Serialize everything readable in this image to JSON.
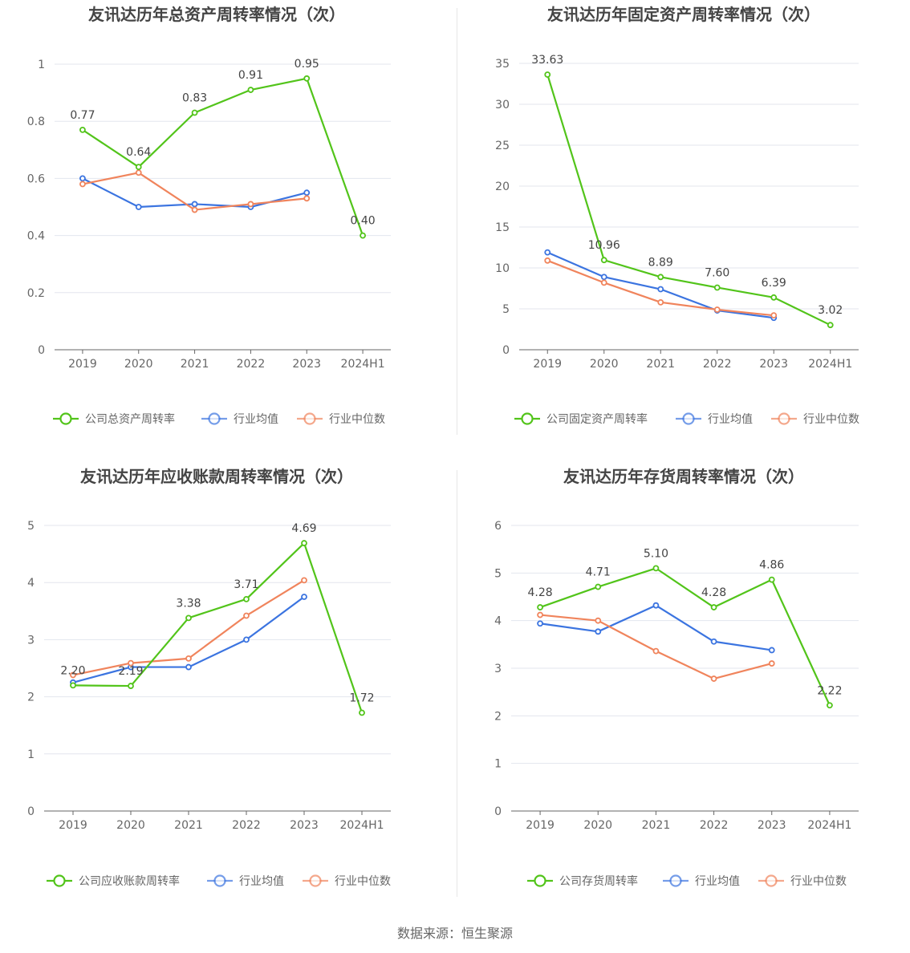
{
  "source_text": "数据来源：恒生聚源",
  "colors": {
    "company": "#52c41a",
    "avg": "#3b74e0",
    "median": "#f0845c"
  },
  "chart_data": [
    {
      "type": "line",
      "title": "友讯达历年总资产周转率情况（次）",
      "categories": [
        "2019",
        "2020",
        "2021",
        "2022",
        "2023",
        "2024H1"
      ],
      "ylim": [
        0,
        1
      ],
      "yticks": [
        0,
        0.2,
        0.4,
        0.6,
        0.8,
        1
      ],
      "ytick_labels": [
        "0",
        "0.2",
        "0.4",
        "0.6",
        "0.8",
        "1"
      ],
      "legend_position": "bottom",
      "series": [
        {
          "name": "公司总资产周转率",
          "values": [
            0.77,
            0.64,
            0.83,
            0.91,
            0.95,
            0.4
          ],
          "labels": [
            "0.77",
            "0.64",
            "0.83",
            "0.91",
            "0.95",
            "0.40"
          ]
        },
        {
          "name": "行业均值",
          "values": [
            0.6,
            0.5,
            0.51,
            0.5,
            0.55,
            null
          ]
        },
        {
          "name": "行业中位数",
          "values": [
            0.58,
            0.62,
            0.49,
            0.51,
            0.53,
            null
          ]
        }
      ]
    },
    {
      "type": "line",
      "title": "友讯达历年固定资产周转率情况（次）",
      "categories": [
        "2019",
        "2020",
        "2021",
        "2022",
        "2023",
        "2024H1"
      ],
      "ylim": [
        0,
        35
      ],
      "yticks": [
        0,
        5,
        10,
        15,
        20,
        25,
        30,
        35
      ],
      "ytick_labels": [
        "0",
        "5",
        "10",
        "15",
        "20",
        "25",
        "30",
        "35"
      ],
      "legend_position": "bottom",
      "series": [
        {
          "name": "公司固定资产周转率",
          "values": [
            33.63,
            10.96,
            8.89,
            7.6,
            6.39,
            3.02
          ],
          "labels": [
            "33.63",
            "10.96",
            "8.89",
            "7.60",
            "6.39",
            "3.02"
          ]
        },
        {
          "name": "行业均值",
          "values": [
            11.9,
            8.9,
            7.4,
            4.8,
            3.9,
            null
          ]
        },
        {
          "name": "行业中位数",
          "values": [
            10.9,
            8.2,
            5.8,
            4.9,
            4.2,
            null
          ]
        }
      ]
    },
    {
      "type": "line",
      "title": "友讯达历年应收账款周转率情况（次）",
      "categories": [
        "2019",
        "2020",
        "2021",
        "2022",
        "2023",
        "2024H1"
      ],
      "ylim": [
        0,
        5
      ],
      "yticks": [
        0,
        1,
        2,
        3,
        4,
        5
      ],
      "ytick_labels": [
        "0",
        "1",
        "2",
        "3",
        "4",
        "5"
      ],
      "legend_position": "bottom",
      "series": [
        {
          "name": "公司应收账款周转率",
          "values": [
            2.2,
            2.19,
            3.38,
            3.71,
            4.69,
            1.72
          ],
          "labels": [
            "2.20",
            "2.19",
            "3.38",
            "3.71",
            "4.69",
            "1.72"
          ]
        },
        {
          "name": "行业均值",
          "values": [
            2.25,
            2.52,
            2.52,
            3.0,
            3.75,
            null
          ]
        },
        {
          "name": "行业中位数",
          "values": [
            2.38,
            2.59,
            2.67,
            3.42,
            4.04,
            null
          ]
        }
      ]
    },
    {
      "type": "line",
      "title": "友讯达历年存货周转率情况（次）",
      "categories": [
        "2019",
        "2020",
        "2021",
        "2022",
        "2023",
        "2024H1"
      ],
      "ylim": [
        0,
        6
      ],
      "yticks": [
        0,
        1,
        2,
        3,
        4,
        5,
        6
      ],
      "ytick_labels": [
        "0",
        "1",
        "2",
        "3",
        "4",
        "5",
        "6"
      ],
      "legend_position": "bottom",
      "series": [
        {
          "name": "公司存货周转率",
          "values": [
            4.28,
            4.71,
            5.1,
            4.28,
            4.86,
            2.22
          ],
          "labels": [
            "4.28",
            "4.71",
            "5.10",
            "4.28",
            "4.86",
            "2.22"
          ]
        },
        {
          "name": "行业均值",
          "values": [
            3.94,
            3.77,
            4.32,
            3.56,
            3.38,
            null
          ]
        },
        {
          "name": "行业中位数",
          "values": [
            4.12,
            4.0,
            3.36,
            2.78,
            3.1,
            null
          ]
        }
      ]
    }
  ]
}
